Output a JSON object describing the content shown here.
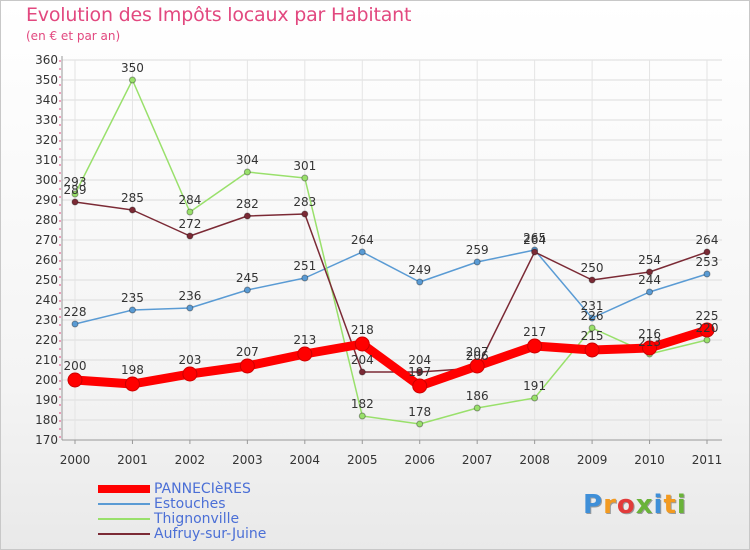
{
  "chart_data": {
    "type": "line",
    "title": "Evolution des Impôts locaux par Habitant",
    "subtitle": "(en € et par an)",
    "xlabel": "",
    "ylabel": "",
    "x": [
      "2000",
      "2001",
      "2002",
      "2003",
      "2004",
      "2005",
      "2006",
      "2007",
      "2008",
      "2009",
      "2010",
      "2011"
    ],
    "ylim": [
      170,
      360
    ],
    "yticks": [
      "170",
      "180",
      "190",
      "200",
      "210",
      "220",
      "230",
      "240",
      "250",
      "260",
      "270",
      "280",
      "290",
      "300",
      "310",
      "320",
      "330",
      "340",
      "350",
      "360"
    ],
    "grid": true,
    "legend_position": "bottom-left",
    "series": [
      {
        "name": "PANNECIèRES",
        "color": "#ff0000",
        "values": [
          200,
          198,
          203,
          207,
          213,
          218,
          197,
          207,
          217,
          215,
          216,
          225
        ]
      },
      {
        "name": "Estouches",
        "color": "#5a9bd4",
        "values": [
          228,
          235,
          236,
          245,
          251,
          264,
          249,
          259,
          265,
          231,
          244,
          253
        ]
      },
      {
        "name": "Thignonville",
        "color": "#99e06b",
        "values": [
          293,
          350,
          284,
          304,
          301,
          182,
          178,
          186,
          191,
          226,
          213,
          220
        ]
      },
      {
        "name": "Aufruy-sur-Juine",
        "color": "#7b2a35",
        "values": [
          289,
          285,
          272,
          282,
          283,
          204,
          204,
          206,
          264,
          250,
          254,
          264
        ]
      }
    ]
  },
  "logo": {
    "letters": [
      "P",
      "r",
      "o",
      "x",
      "i",
      "t",
      "i"
    ],
    "colors": [
      "#3f8fd8",
      "#f29a21",
      "#e23b3b",
      "#6ab339",
      "#3f8fd8",
      "#f29a21",
      "#6ab339"
    ]
  }
}
